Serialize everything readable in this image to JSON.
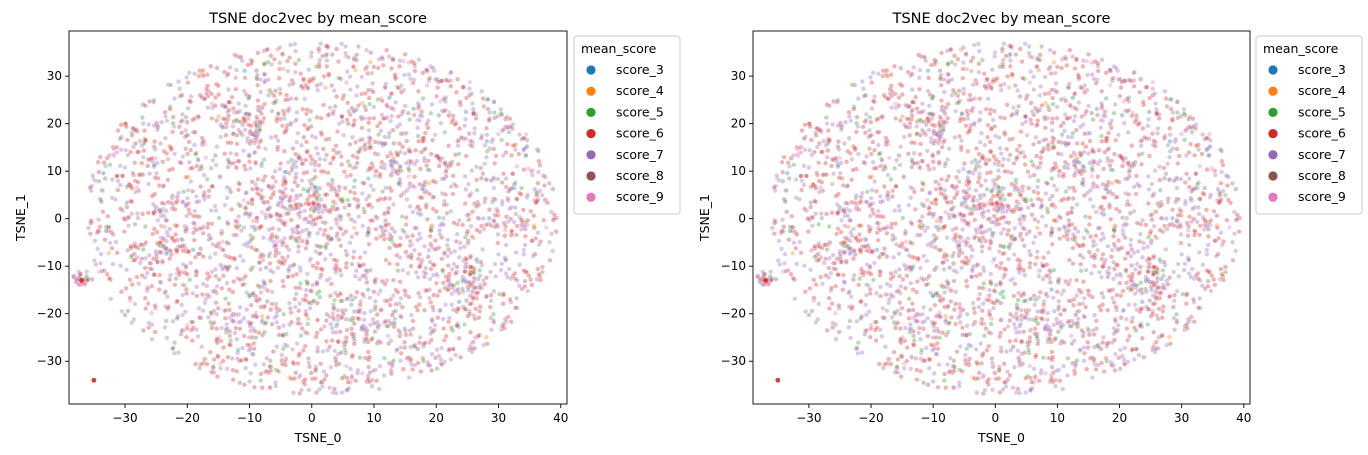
{
  "chart_data": [
    {
      "type": "scatter",
      "title": "TSNE doc2vec by mean_score",
      "xlabel": "TSNE_0",
      "ylabel": "TSNE_1",
      "xlim": [
        -39,
        41
      ],
      "ylim": [
        -39,
        39.5
      ],
      "xticks": [
        -30,
        -20,
        -10,
        0,
        10,
        20,
        30,
        40
      ],
      "yticks": [
        -30,
        -20,
        -10,
        0,
        10,
        20,
        30
      ],
      "legend_title": "mean_score",
      "legend_position": "outside-upper-right",
      "grid": false,
      "point_alpha": 0.35,
      "series": [
        {
          "name": "score_3",
          "color": "#1f77b4"
        },
        {
          "name": "score_4",
          "color": "#ff7f0e"
        },
        {
          "name": "score_5",
          "color": "#2ca02c"
        },
        {
          "name": "score_6",
          "color": "#d62728"
        },
        {
          "name": "score_7",
          "color": "#9467bd"
        },
        {
          "name": "score_8",
          "color": "#8c564b"
        },
        {
          "name": "score_9",
          "color": "#e377c2"
        }
      ],
      "notable_points": [
        {
          "series": "score_6",
          "x": -35,
          "y": -34
        },
        {
          "series": "score_6",
          "x": -37,
          "y": -13
        }
      ]
    },
    {
      "type": "scatter",
      "title": "TSNE doc2vec by mean_score",
      "xlabel": "TSNE_0",
      "ylabel": "TSNE_1",
      "xlim": [
        -39,
        41
      ],
      "ylim": [
        -39,
        39.5
      ],
      "xticks": [
        -30,
        -20,
        -10,
        0,
        10,
        20,
        30,
        40
      ],
      "yticks": [
        -30,
        -20,
        -10,
        0,
        10,
        20,
        30
      ],
      "legend_title": "mean_score",
      "legend_position": "outside-upper-right",
      "grid": false,
      "point_alpha": 0.35,
      "series": [
        {
          "name": "score_3",
          "color": "#1f77b4"
        },
        {
          "name": "score_4",
          "color": "#ff7f0e"
        },
        {
          "name": "score_5",
          "color": "#2ca02c"
        },
        {
          "name": "score_6",
          "color": "#d62728"
        },
        {
          "name": "score_7",
          "color": "#9467bd"
        },
        {
          "name": "score_8",
          "color": "#8c564b"
        },
        {
          "name": "score_9",
          "color": "#e377c2"
        }
      ],
      "notable_points": [
        {
          "series": "score_6",
          "x": -35,
          "y": -34
        },
        {
          "series": "score_6",
          "x": -37,
          "y": -13
        }
      ]
    }
  ]
}
